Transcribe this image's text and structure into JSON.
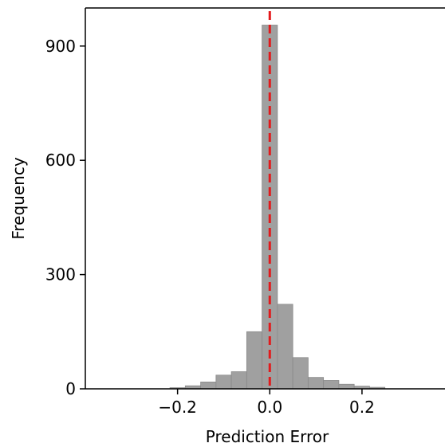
{
  "chart_data": {
    "type": "bar",
    "title": "",
    "xlabel": "Prediction Error",
    "ylabel": "Frequency",
    "xlim": [
      -0.4,
      0.38
    ],
    "ylim": [
      0,
      1000
    ],
    "x_ticks": [
      -0.2,
      0.0,
      0.2
    ],
    "x_tick_labels": [
      "−0.2",
      "0.0",
      "0.2"
    ],
    "y_ticks": [
      0,
      300,
      600,
      900
    ],
    "y_tick_labels": [
      "0",
      "300",
      "600",
      "900"
    ],
    "bin_width": 0.0333,
    "bins": [
      {
        "start": -0.2165,
        "end": -0.1832,
        "count": 3
      },
      {
        "start": -0.1832,
        "end": -0.1499,
        "count": 8
      },
      {
        "start": -0.1499,
        "end": -0.1166,
        "count": 18
      },
      {
        "start": -0.1166,
        "end": -0.0833,
        "count": 36
      },
      {
        "start": -0.0833,
        "end": -0.05,
        "count": 45
      },
      {
        "start": -0.05,
        "end": -0.0167,
        "count": 150
      },
      {
        "start": -0.0167,
        "end": 0.0166,
        "count": 955
      },
      {
        "start": 0.0166,
        "end": 0.0499,
        "count": 222
      },
      {
        "start": 0.0499,
        "end": 0.0832,
        "count": 82
      },
      {
        "start": 0.0832,
        "end": 0.1165,
        "count": 30
      },
      {
        "start": 0.1165,
        "end": 0.1498,
        "count": 22
      },
      {
        "start": 0.1498,
        "end": 0.1831,
        "count": 12
      },
      {
        "start": 0.1831,
        "end": 0.2164,
        "count": 7
      },
      {
        "start": 0.2164,
        "end": 0.2497,
        "count": 4
      }
    ],
    "reference_line": {
      "x": 0.0,
      "style": "dashed"
    },
    "grid": false,
    "legend": "none",
    "colors": {
      "bars": "#a0a0a0",
      "bar_edge": "#8a8a8a",
      "reference_line": "#e31a1c",
      "axes": "#000000"
    }
  }
}
